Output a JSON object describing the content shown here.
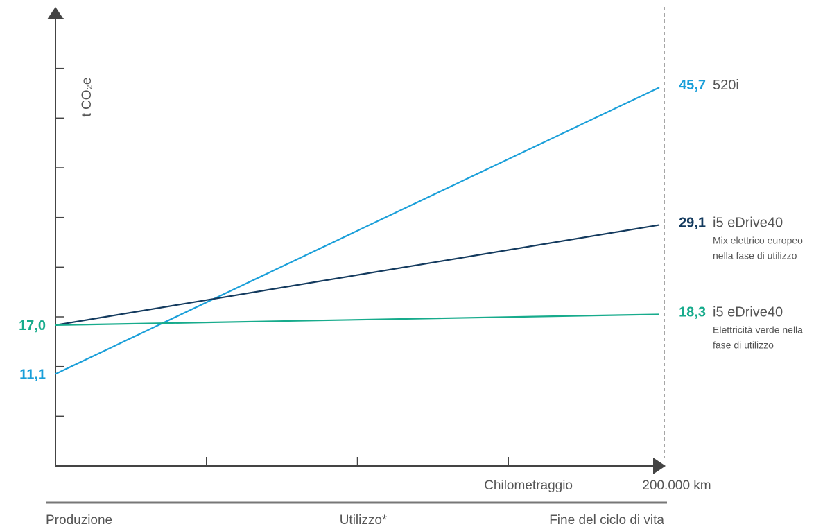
{
  "chart_data": {
    "type": "line",
    "ylabel": "t CO₂e",
    "xlabel": "Chilometraggio",
    "x_end_label": "200.000 km",
    "x": [
      0,
      200000
    ],
    "ylim": [
      0,
      54
    ],
    "series": [
      {
        "name": "520i",
        "values": [
          11.1,
          45.7
        ],
        "start_label": "11,1",
        "end_label": "45,7",
        "subtitle": [],
        "color": "#1a9fd9"
      },
      {
        "name": "i5 eDrive40",
        "values": [
          17.0,
          29.1
        ],
        "start_label": "",
        "end_label": "29,1",
        "subtitle": [
          "Mix elettrico europeo",
          "nella fase di utilizzo"
        ],
        "color": "#133a5e"
      },
      {
        "name": "i5 eDrive40",
        "values": [
          17.0,
          18.3
        ],
        "start_label": "17,0",
        "end_label": "18,3",
        "subtitle": [
          "Elettricità verde nella",
          "fase di utilizzo"
        ],
        "color": "#17ab8c"
      }
    ],
    "phases": [
      "Produzione",
      "Utilizzo*",
      "Fine del ciclo di vita"
    ],
    "grid": false
  },
  "colors": {
    "axis": "#444444",
    "text": "#555555",
    "dashed": "#888888"
  }
}
